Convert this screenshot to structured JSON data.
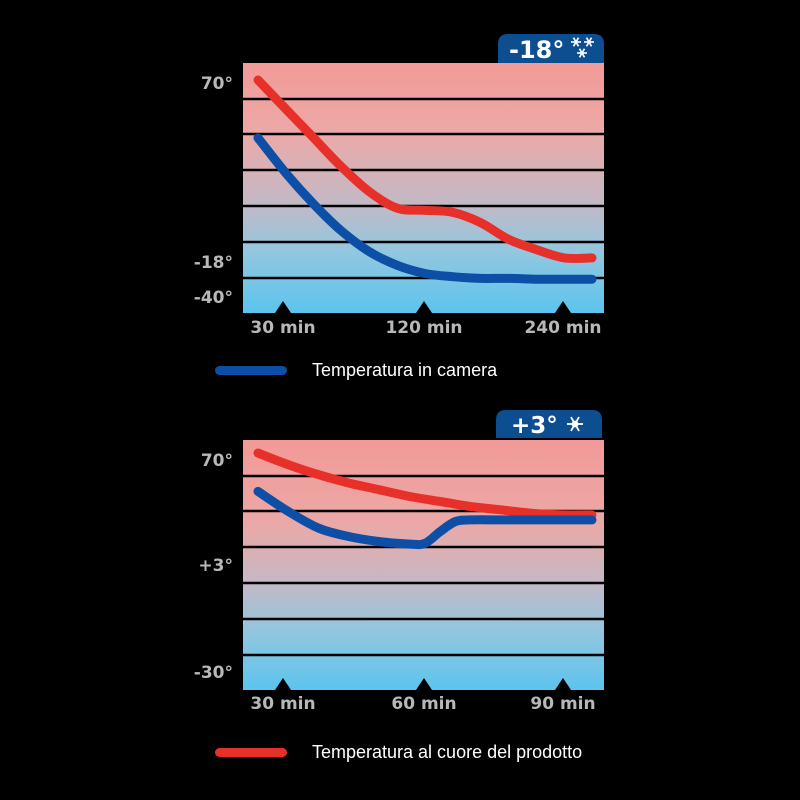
{
  "chart_data": [
    {
      "type": "line",
      "badge": "-18°",
      "badge_icon": "snowflake-cluster-icon",
      "y_tick_labels": [
        "70°",
        "-18°",
        "-40°"
      ],
      "x_tick_labels": [
        "30 min",
        "120 min",
        "240 min"
      ],
      "series": [
        {
          "key": "product",
          "color": "#e8302a",
          "points": [
            [
              0,
              70
            ],
            [
              20,
              56
            ],
            [
              40,
              42
            ],
            [
              60,
              28
            ],
            [
              80,
              16
            ],
            [
              100,
              8
            ],
            [
              120,
              7
            ],
            [
              140,
              6
            ],
            [
              160,
              1
            ],
            [
              180,
              -7
            ],
            [
              200,
              -12
            ],
            [
              220,
              -16
            ],
            [
              240,
              -16
            ]
          ]
        },
        {
          "key": "chamber",
          "color": "#0d4fa6",
          "points": [
            [
              0,
              42
            ],
            [
              20,
              25
            ],
            [
              40,
              10
            ],
            [
              60,
              -3
            ],
            [
              80,
              -13
            ],
            [
              100,
              -20
            ],
            [
              120,
              -25
            ],
            [
              140,
              -27
            ],
            [
              160,
              -28
            ],
            [
              180,
              -28
            ],
            [
              200,
              -28.5
            ],
            [
              220,
              -28.5
            ],
            [
              240,
              -28.5
            ]
          ]
        }
      ]
    },
    {
      "type": "line",
      "badge": "+3°",
      "badge_icon": "snowflake-icon",
      "y_tick_labels": [
        "70°",
        "+3°",
        "-30°"
      ],
      "x_tick_labels": [
        "30 min",
        "60 min",
        "90 min"
      ],
      "series": [
        {
          "key": "product",
          "color": "#e8302a",
          "points": [
            [
              0,
              70
            ],
            [
              8,
              63
            ],
            [
              16,
              57
            ],
            [
              24,
              52
            ],
            [
              32,
              48
            ],
            [
              40,
              44
            ],
            [
              48,
              41
            ],
            [
              56,
              38
            ],
            [
              64,
              36
            ],
            [
              72,
              34
            ],
            [
              80,
              33
            ],
            [
              88,
              33
            ]
          ]
        },
        {
          "key": "chamber",
          "color": "#0d4fa6",
          "points": [
            [
              0,
              47
            ],
            [
              8,
              35
            ],
            [
              16,
              25
            ],
            [
              24,
              20
            ],
            [
              32,
              17
            ],
            [
              40,
              15.5
            ],
            [
              44,
              16
            ],
            [
              48,
              23
            ],
            [
              52,
              29
            ],
            [
              56,
              30
            ],
            [
              64,
              30
            ],
            [
              72,
              30
            ],
            [
              80,
              30
            ],
            [
              88,
              30
            ]
          ]
        }
      ]
    }
  ],
  "legend": {
    "chamber_label": "Temperatura in camera",
    "product_label": "Temperatura al cuore del prodotto",
    "chamber_color": "#0d4fa6",
    "product_color": "#e8302a"
  }
}
